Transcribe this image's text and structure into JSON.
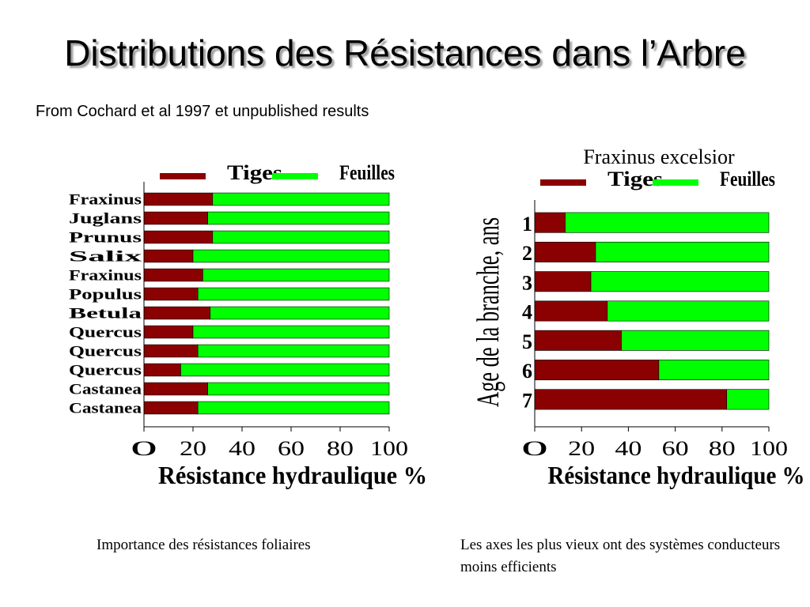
{
  "title": "Distributions des Résistances dans l’Arbre",
  "subtitle": "From Cochard et al 1997 et unpublished results",
  "captions": {
    "left": "Importance des résistances foliaires",
    "right": "Les axes les plus vieux ont des systèmes conducteurs moins efficients"
  },
  "colors": {
    "series_1": "#8b0000",
    "series_2": "#00ff00"
  },
  "chart_data": [
    {
      "type": "bar",
      "orientation": "horizontal",
      "stacked": "percent",
      "title": "",
      "legend": [
        "Tiges",
        "Feuilles"
      ],
      "legend_placement": "top",
      "categories": [
        "Fraxinus",
        "Juglans",
        "Prunus",
        "Salix",
        "Fraxinus",
        "Populus",
        "Betula",
        "Quercus",
        "Quercus",
        "Quercus",
        "Castanea",
        "Castanea"
      ],
      "series": [
        {
          "name": "Tiges",
          "values": [
            28,
            26,
            28,
            20,
            24,
            22,
            27,
            20,
            22,
            15,
            26,
            22
          ]
        },
        {
          "name": "Feuilles",
          "values": [
            72,
            74,
            72,
            80,
            76,
            78,
            73,
            80,
            78,
            85,
            74,
            78
          ]
        }
      ],
      "xlim": [
        0,
        100
      ],
      "xticks": [
        "0",
        "20",
        "40",
        "60",
        "80",
        "100"
      ],
      "xlabel": "Résistance hydraulique %",
      "ylabel": "",
      "grid": false
    },
    {
      "type": "bar",
      "orientation": "horizontal",
      "stacked": "percent",
      "title": "Fraxinus excelsior",
      "legend": [
        "Tiges",
        "Feuilles"
      ],
      "legend_placement": "top",
      "categories": [
        "1",
        "2",
        "3",
        "4",
        "5",
        "6",
        "7"
      ],
      "series": [
        {
          "name": "Tiges",
          "values": [
            13,
            26,
            24,
            31,
            37,
            53,
            82
          ]
        },
        {
          "name": "Feuilles",
          "values": [
            87,
            74,
            76,
            69,
            63,
            47,
            18
          ]
        }
      ],
      "xlim": [
        0,
        100
      ],
      "xticks": [
        "0",
        "20",
        "40",
        "60",
        "80",
        "100"
      ],
      "xlabel": "Résistance hydraulique %",
      "ylabel": "Age de la branche, ans",
      "grid": false
    }
  ]
}
